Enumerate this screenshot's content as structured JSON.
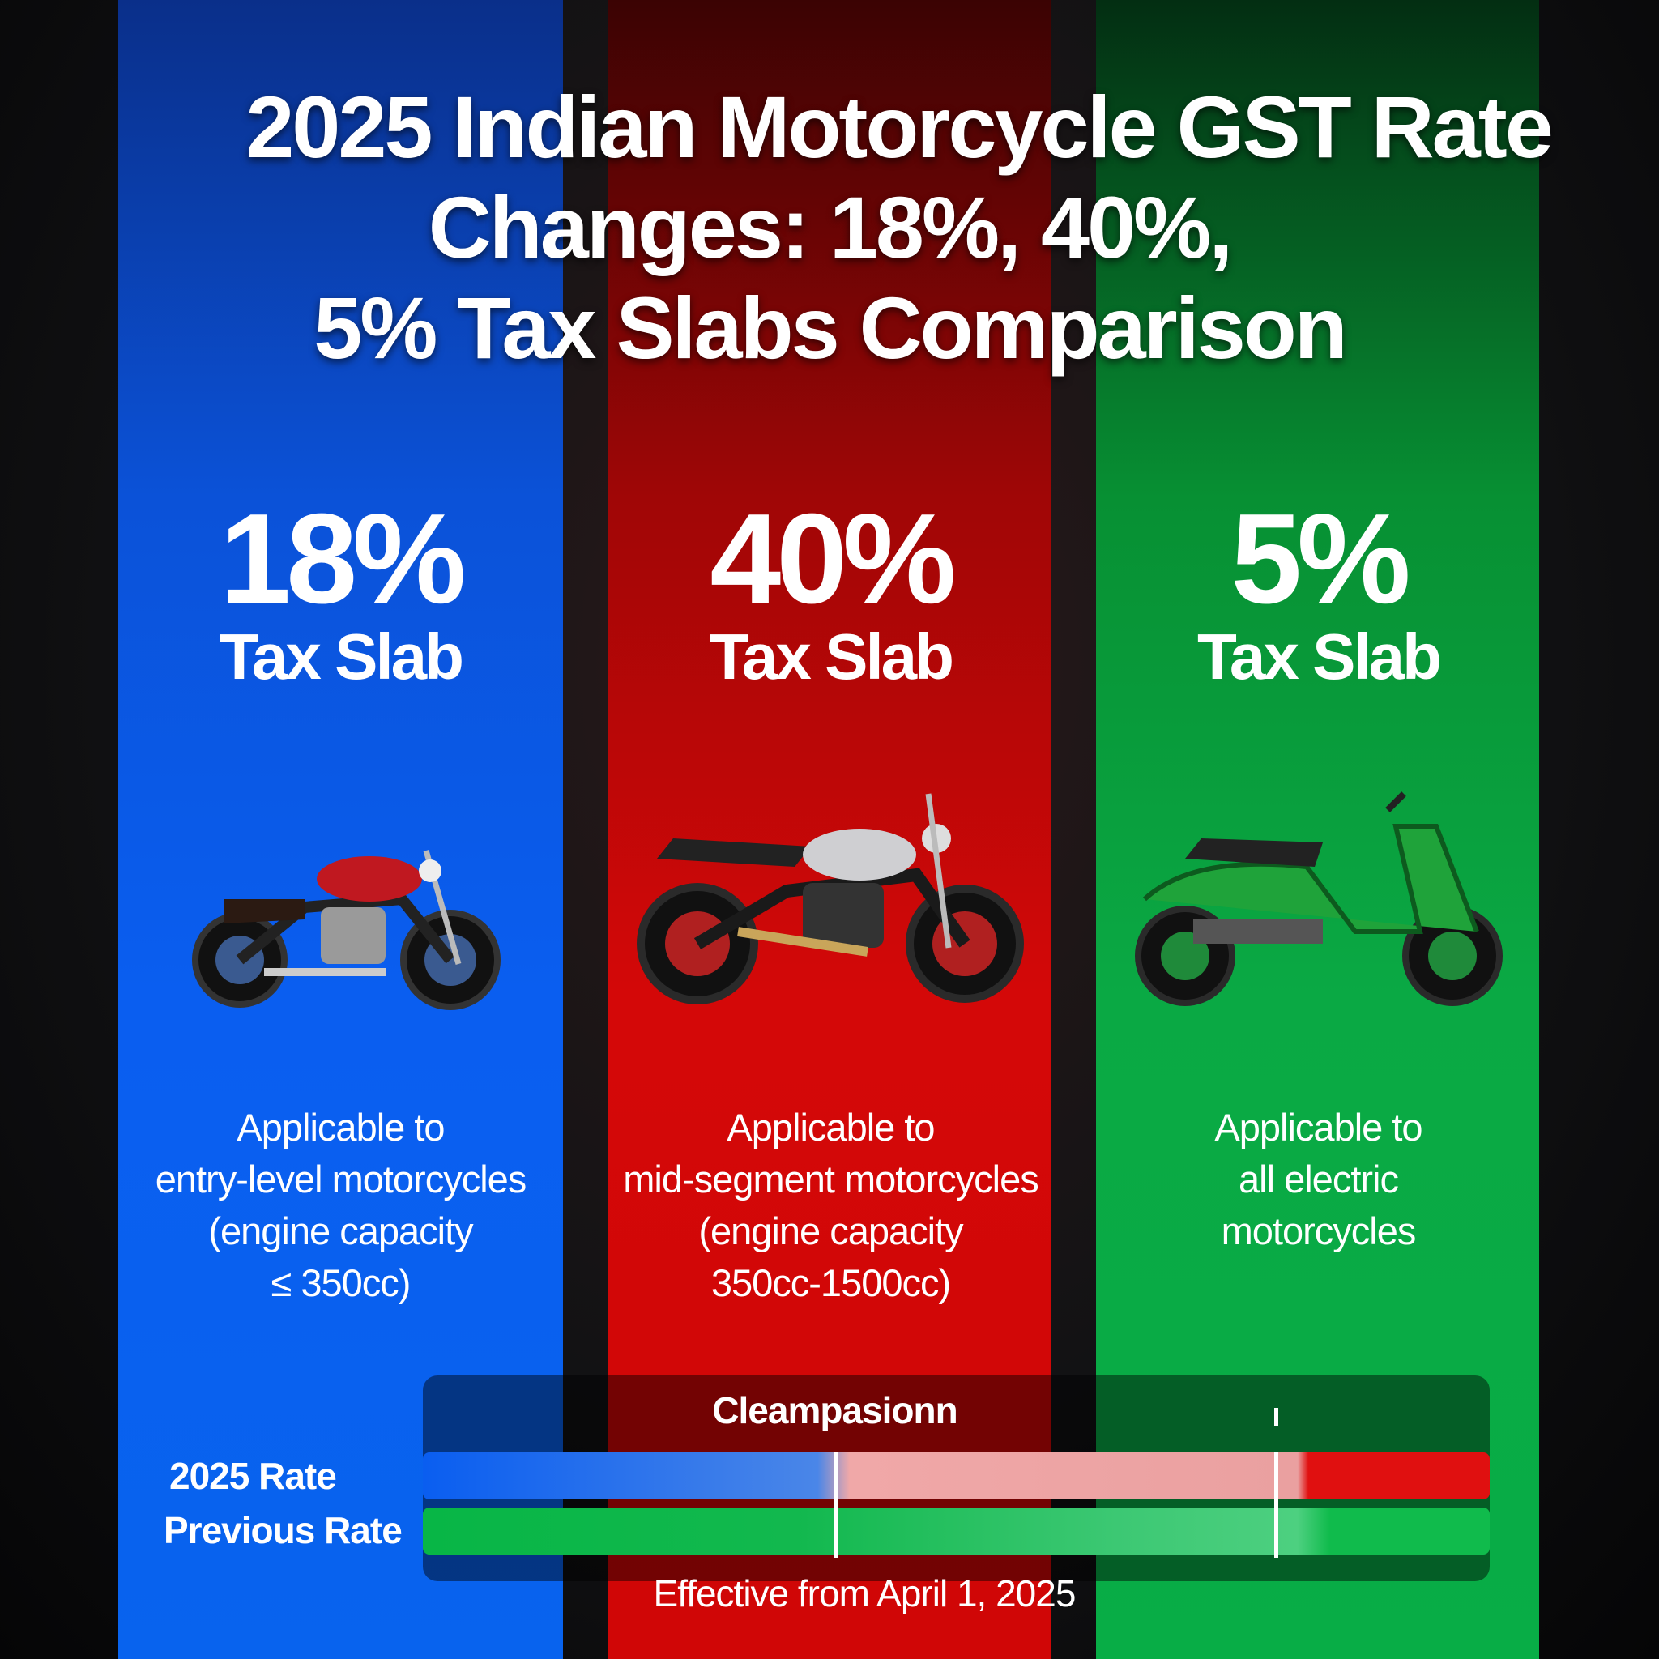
{
  "title": {
    "line1": "2025 Indian Motorcycle GST Rate",
    "line2": "Changes: 18%, 40%,",
    "line3": "5% Tax Slabs Comparison"
  },
  "slabs": [
    {
      "rate": "18%",
      "label": "Tax Slab",
      "desc": [
        "Applicable to",
        "entry-level motorcycles",
        "(engine capacity",
        "≤ 350cc)"
      ],
      "color": "#0a5ef0",
      "bike_color": "#c01820"
    },
    {
      "rate": "40%",
      "label": "Tax Slab",
      "desc": [
        "Applicable to",
        "mid-segment motorcycles",
        "(engine capacity",
        "350cc-1500cc)"
      ],
      "color": "#d40808",
      "bike_color": "#cfcfd2"
    },
    {
      "rate": "5%",
      "label": "Tax Slab",
      "desc": [
        "Applicable to",
        "all electric",
        "motorcycles"
      ],
      "color": "#0aa944",
      "bike_color": "#1fa33a"
    }
  ],
  "comparison": {
    "heading": "Cleampasionn",
    "row1_label": "2025 Rate",
    "row2_label": "Previous Rate",
    "effective": "Effective from April 1, 2025"
  }
}
